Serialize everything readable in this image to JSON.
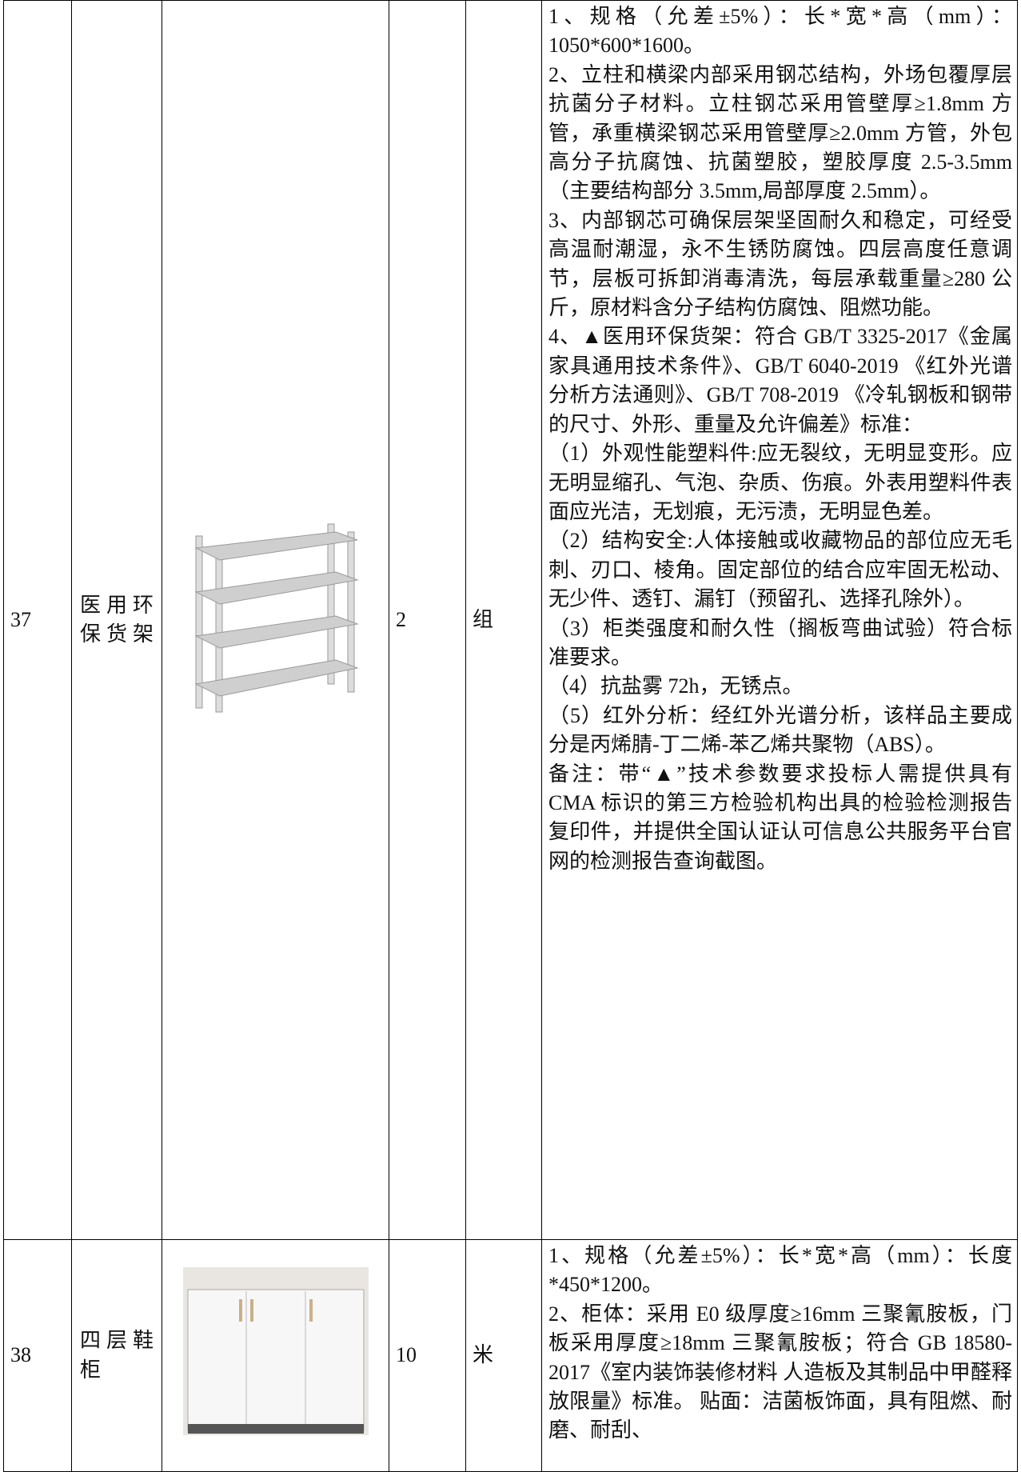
{
  "table": {
    "rows": [
      {
        "no": "37",
        "name": "医用环保货架",
        "qty": "2",
        "unit": "组",
        "spec": [
          "1、规格（允差±5%）：长*宽*高（mm）：1050*600*1600。",
          "2、立柱和横梁内部采用钢芯结构，外场包覆厚层抗菌分子材料。立柱钢芯采用管壁厚≥1.8mm 方管，承重横梁钢芯采用管壁厚≥2.0mm 方管，外包高分子抗腐蚀、抗菌塑胶，塑胶厚度 2.5-3.5mm （主要结构部分 3.5mm,局部厚度 2.5mm）。",
          "3、内部钢芯可确保层架坚固耐久和稳定，可经受高温耐潮湿，永不生锈防腐蚀。四层高度任意调节，层板可拆卸消毒清洗，每层承载重量≥280 公斤，原材料含分子结构仿腐蚀、阻燃功能。",
          "4、▲医用环保货架：符合 GB/T 3325-2017《金属家具通用技术条件》、GB/T 6040-2019 《红外光谱分析方法通则》、GB/T 708-2019 《冷轧钢板和钢带的尺寸、外形、重量及允许偏差》标准：",
          "（1）外观性能塑料件:应无裂纹，无明显变形。应无明显缩孔、气泡、杂质、伤痕。外表用塑料件表面应光洁，无划痕，无污渍，无明显色差。",
          "（2）结构安全:人体接触或收藏物品的部位应无毛刺、刃口、棱角。固定部位的结合应牢固无松动、无少件、透钉、漏钉（预留孔、选择孔除外）。",
          "（3）柜类强度和耐久性（搁板弯曲试验）符合标准要求。",
          "（4）抗盐雾 72h，无锈点。",
          "（5）红外分析：经红外光谱分析，该样品主要成分是丙烯腈-丁二烯-苯乙烯共聚物（ABS）。",
          "备注：带“▲”技术参数要求投标人需提供具有 CMA 标识的第三方检验机构出具的检验检测报告复印件，并提供全国认证认可信息公共服务平台官网的检测报告查询截图。"
        ]
      },
      {
        "no": "38",
        "name": "四层鞋柜",
        "qty": "10",
        "unit": "米",
        "spec": [
          "1、规格（允差±5%）：长*宽*高（mm）：长度*450*1200。",
          "2、柜体：采用 E0 级厚度≥16mm 三聚氰胺板，门板采用厚度≥18mm 三聚氰胺板；符合 GB 18580-2017《室内装饰装修材料 人造板及其制品中甲醛释放限量》标准。 贴面：洁菌板饰面，具有阻燃、耐磨、耐刮、"
        ]
      }
    ]
  }
}
